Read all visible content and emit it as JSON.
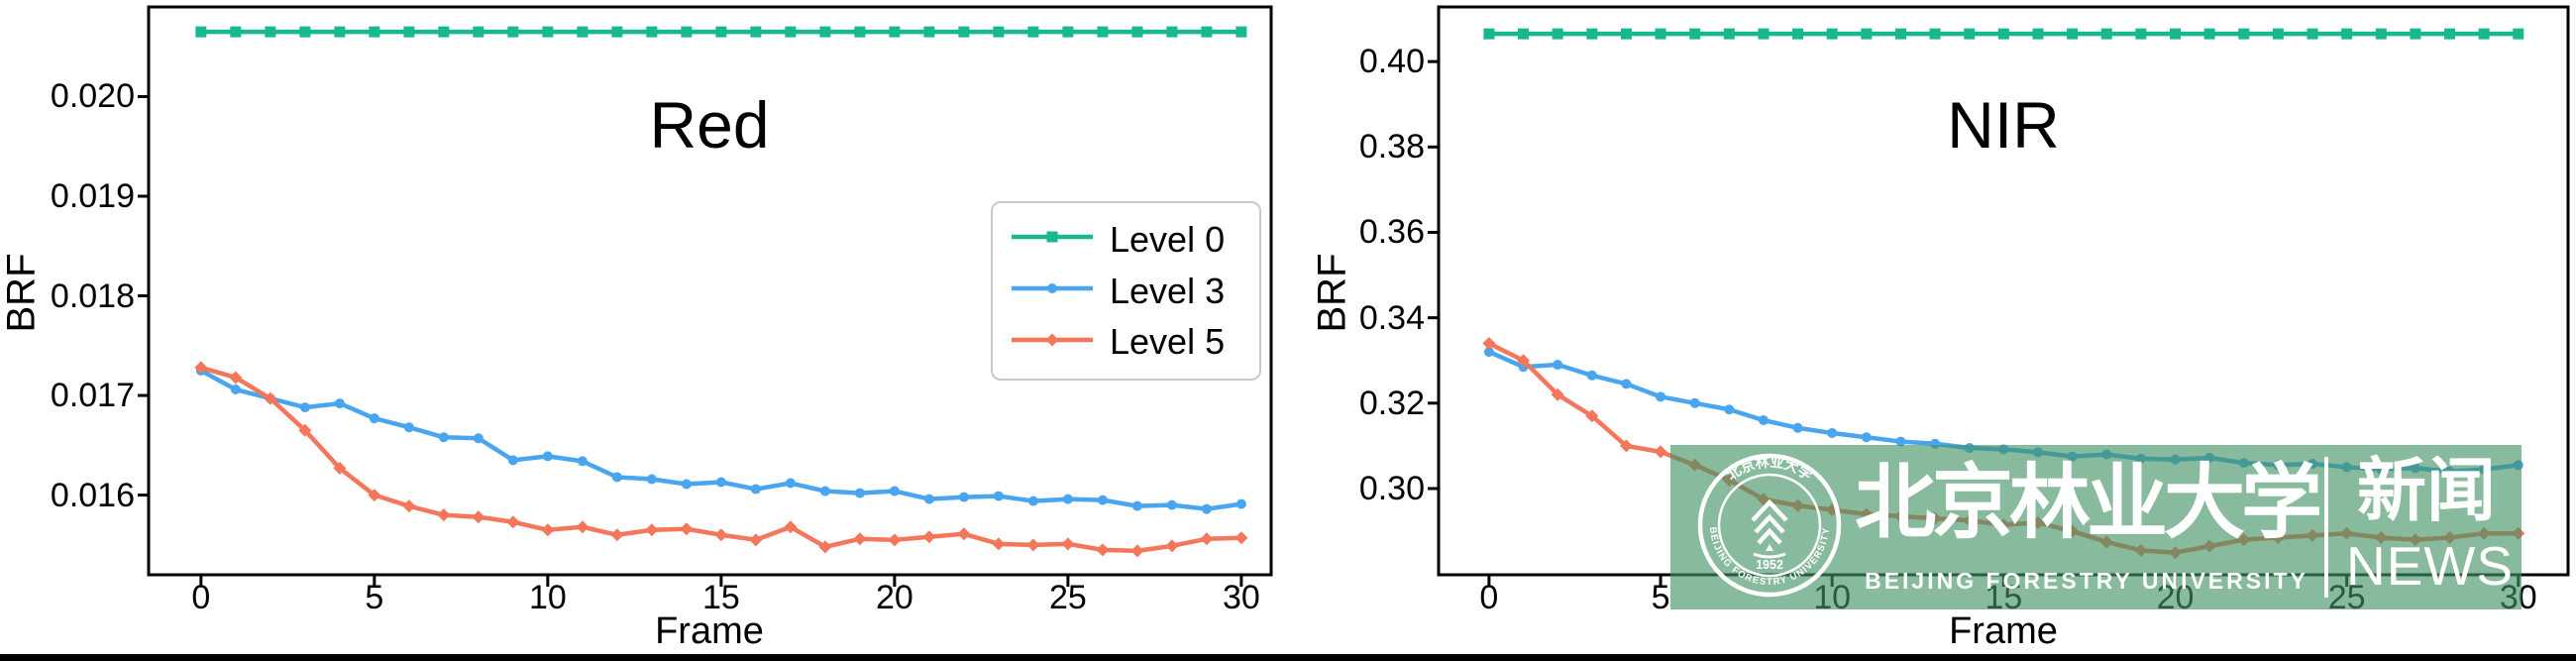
{
  "figure": {
    "background": "#ffffff",
    "axis_color": "#000000",
    "bottom_bar_color": "#000000"
  },
  "chart_data": [
    {
      "id": "red",
      "type": "line",
      "title": "Red",
      "xlabel": "Frame",
      "ylabel": "BRF",
      "grid": false,
      "legend": true,
      "legend_position": "upper right",
      "xlim": [
        -1.51,
        30.86
      ],
      "ylim": [
        0.0152,
        0.0209
      ],
      "xticks": [
        0,
        5,
        10,
        15,
        20,
        25,
        30
      ],
      "yticks": [
        {
          "v": 0.016,
          "label": "0.016"
        },
        {
          "v": 0.017,
          "label": "0.017"
        },
        {
          "v": 0.018,
          "label": "0.018"
        },
        {
          "v": 0.019,
          "label": "0.019"
        },
        {
          "v": 0.02,
          "label": "0.020"
        }
      ],
      "x": [
        0,
        1,
        2,
        3,
        4,
        5,
        6,
        7,
        8,
        9,
        10,
        11,
        12,
        13,
        14,
        15,
        16,
        17,
        18,
        19,
        20,
        21,
        22,
        23,
        24,
        25,
        26,
        27,
        28,
        29,
        30
      ],
      "series": [
        {
          "name": "Level 0",
          "color": "#17b890",
          "marker": "square",
          "values": [
            0.02065,
            0.02065,
            0.02065,
            0.02065,
            0.02065,
            0.02065,
            0.02065,
            0.02065,
            0.02065,
            0.02065,
            0.02065,
            0.02065,
            0.02065,
            0.02065,
            0.02065,
            0.02065,
            0.02065,
            0.02065,
            0.02065,
            0.02065,
            0.02065,
            0.02065,
            0.02065,
            0.02065,
            0.02065,
            0.02065,
            0.02065,
            0.02065,
            0.02065,
            0.02065,
            0.02065
          ]
        },
        {
          "name": "Level 3",
          "color": "#4aa5f0",
          "marker": "circle",
          "values": [
            0.01725,
            0.01706,
            0.01697,
            0.01688,
            0.01692,
            0.01677,
            0.01668,
            0.01658,
            0.01657,
            0.01635,
            0.01639,
            0.01634,
            0.01618,
            0.01616,
            0.01611,
            0.01613,
            0.01606,
            0.01612,
            0.01604,
            0.01602,
            0.01604,
            0.01596,
            0.01598,
            0.01599,
            0.01594,
            0.01596,
            0.01595,
            0.01589,
            0.0159,
            0.01586,
            0.01591
          ]
        },
        {
          "name": "Level 5",
          "color": "#f4765b",
          "marker": "diamond",
          "values": [
            0.01728,
            0.01718,
            0.01697,
            0.01665,
            0.01627,
            0.016,
            0.01589,
            0.0158,
            0.01578,
            0.01573,
            0.01565,
            0.01568,
            0.0156,
            0.01565,
            0.01566,
            0.0156,
            0.01555,
            0.01568,
            0.01548,
            0.01556,
            0.01555,
            0.01558,
            0.01561,
            0.01551,
            0.0155,
            0.01551,
            0.01545,
            0.01544,
            0.01549,
            0.01556,
            0.01557
          ]
        }
      ]
    },
    {
      "id": "nir",
      "type": "line",
      "title": "NIR",
      "xlabel": "Frame",
      "ylabel": "BRF",
      "grid": false,
      "legend": false,
      "xlim": [
        -1.47,
        31.45
      ],
      "ylim": [
        0.2798,
        0.4128
      ],
      "xticks": [
        0,
        5,
        10,
        15,
        20,
        25,
        30
      ],
      "yticks": [
        {
          "v": 0.3,
          "label": "0.30"
        },
        {
          "v": 0.32,
          "label": "0.32"
        },
        {
          "v": 0.34,
          "label": "0.34"
        },
        {
          "v": 0.36,
          "label": "0.36"
        },
        {
          "v": 0.38,
          "label": "0.38"
        },
        {
          "v": 0.4,
          "label": "0.40"
        }
      ],
      "x": [
        0,
        1,
        2,
        3,
        4,
        5,
        6,
        7,
        8,
        9,
        10,
        11,
        12,
        13,
        14,
        15,
        16,
        17,
        18,
        19,
        20,
        21,
        22,
        23,
        24,
        25,
        26,
        27,
        28,
        29,
        30
      ],
      "series": [
        {
          "name": "Level 0",
          "color": "#17b890",
          "marker": "square",
          "values": [
            0.4065,
            0.4065,
            0.4065,
            0.4065,
            0.4065,
            0.4065,
            0.4065,
            0.4065,
            0.4065,
            0.4065,
            0.4065,
            0.4065,
            0.4065,
            0.4065,
            0.4065,
            0.4065,
            0.4065,
            0.4065,
            0.4065,
            0.4065,
            0.4065,
            0.4065,
            0.4065,
            0.4065,
            0.4065,
            0.4065,
            0.4065,
            0.4065,
            0.4065,
            0.4065,
            0.4065
          ]
        },
        {
          "name": "Level 3",
          "color": "#4aa5f0",
          "marker": "circle",
          "values": [
            0.332,
            0.3285,
            0.329,
            0.3265,
            0.3245,
            0.3215,
            0.32,
            0.3185,
            0.316,
            0.3142,
            0.313,
            0.312,
            0.311,
            0.3105,
            0.3095,
            0.3092,
            0.3085,
            0.3075,
            0.308,
            0.307,
            0.3068,
            0.3072,
            0.306,
            0.3055,
            0.3058,
            0.305,
            0.3045,
            0.3048,
            0.304,
            0.3045,
            0.3055
          ]
        },
        {
          "name": "Level 5",
          "color": "#f4765b",
          "marker": "diamond",
          "values": [
            0.334,
            0.33,
            0.322,
            0.317,
            0.31,
            0.3086,
            0.3055,
            0.302,
            0.2975,
            0.296,
            0.295,
            0.294,
            0.2935,
            0.293,
            0.2925,
            0.2915,
            0.292,
            0.29,
            0.2875,
            0.2855,
            0.285,
            0.2865,
            0.288,
            0.2885,
            0.289,
            0.2895,
            0.2885,
            0.288,
            0.2885,
            0.2895,
            0.2895
          ]
        }
      ]
    }
  ],
  "watermark": {
    "overlay_color": "rgba(67,146,99,0.63)",
    "seal": {
      "arc_text_top": "北京林业大学",
      "arc_text_bottom": "BEIJING FORESTRY UNIVERSITY",
      "year": "1952"
    },
    "university_cn": "北京林业大学",
    "university_en": "BEIJING FORESTRY UNIVERSITY",
    "news_cn": "新闻",
    "news_en": "NEWS"
  }
}
